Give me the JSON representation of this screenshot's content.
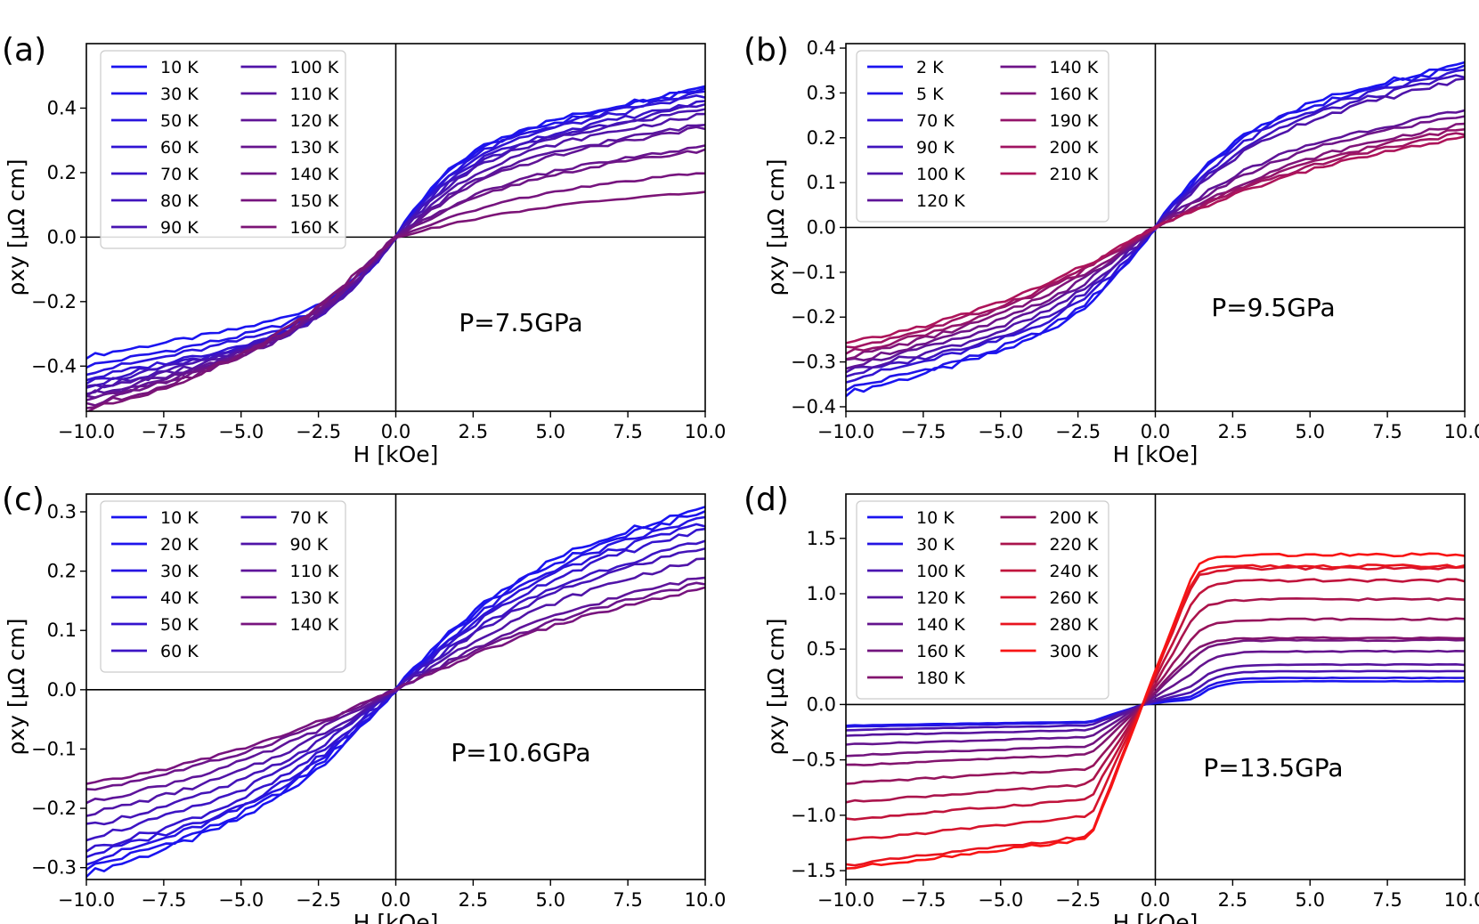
{
  "figure": {
    "background": "#ffffff",
    "axis_color": "#000000"
  },
  "chart_data": [
    {
      "type": "line",
      "panel": "(a)",
      "annotation": "P=7.5GPa",
      "xlabel": "H [kOe]",
      "ylabel": "ρxy [μΩ cm]",
      "xlim": [
        -10,
        10
      ],
      "ylim": [
        -0.54,
        0.6
      ],
      "xticks": [
        "−10.0",
        "−7.5",
        "−5.0",
        "−2.5",
        "0.0",
        "2.5",
        "5.0",
        "7.5",
        "10.0"
      ],
      "xtick_values": [
        -10,
        -7.5,
        -5,
        -2.5,
        0,
        2.5,
        5,
        7.5,
        10
      ],
      "yticks": [
        "−0.4",
        "−0.2",
        "0.0",
        "0.2",
        "0.4"
      ],
      "ytick_values": [
        -0.4,
        -0.2,
        0,
        0.2,
        0.4
      ],
      "legend": "upper-left",
      "legend_columns": 2,
      "zero_lines": true,
      "series": [
        {
          "name": "10 K",
          "color": "#1a14f0",
          "high": 0.47,
          "low": -0.37,
          "knee": 2.2
        },
        {
          "name": "30 K",
          "color": "#1f14ea",
          "high": 0.46,
          "low": -0.4,
          "knee": 2.2
        },
        {
          "name": "50 K",
          "color": "#2914de",
          "high": 0.45,
          "low": -0.42,
          "knee": 2.3
        },
        {
          "name": "60 K",
          "color": "#3014d4",
          "high": 0.44,
          "low": -0.44,
          "knee": 2.3
        },
        {
          "name": "70 K",
          "color": "#3814c8",
          "high": 0.42,
          "low": -0.45,
          "knee": 2.4
        },
        {
          "name": "80 K",
          "color": "#4014bd",
          "high": 0.41,
          "low": -0.46,
          "knee": 2.5
        },
        {
          "name": "90 K",
          "color": "#4814b2",
          "high": 0.4,
          "low": -0.47,
          "knee": 2.6
        },
        {
          "name": "100 K",
          "color": "#5014a8",
          "high": 0.38,
          "low": -0.48,
          "knee": 2.8
        },
        {
          "name": "110 K",
          "color": "#58149e",
          "high": 0.35,
          "low": -0.49,
          "knee": 3.0
        },
        {
          "name": "120 K",
          "color": "#601496",
          "high": 0.34,
          "low": -0.5,
          "knee": 3.2
        },
        {
          "name": "130 K",
          "color": "#67148e",
          "high": 0.28,
          "low": -0.51,
          "knee": 3.5
        },
        {
          "name": "140 K",
          "color": "#6e1486",
          "high": 0.27,
          "low": -0.52,
          "knee": 3.8
        },
        {
          "name": "150 K",
          "color": "#76147e",
          "high": 0.2,
          "low": -0.53,
          "knee": 4.2
        },
        {
          "name": "160 K",
          "color": "#7c1476",
          "high": 0.14,
          "low": -0.54,
          "knee": 4.6
        }
      ]
    },
    {
      "type": "line",
      "panel": "(b)",
      "annotation": "P=9.5GPa",
      "xlabel": "H [kOe]",
      "ylabel": "ρxy [μΩ cm]",
      "xlim": [
        -10,
        10
      ],
      "ylim": [
        -0.41,
        0.41
      ],
      "xticks": [
        "−10.0",
        "−7.5",
        "−5.0",
        "−2.5",
        "0.0",
        "2.5",
        "5.0",
        "7.5",
        "10.0"
      ],
      "xtick_values": [
        -10,
        -7.5,
        -5,
        -2.5,
        0,
        2.5,
        5,
        7.5,
        10
      ],
      "yticks": [
        "−0.4",
        "−0.3",
        "−0.2",
        "−0.1",
        "0.0",
        "0.1",
        "0.2",
        "0.3",
        "0.4"
      ],
      "ytick_values": [
        -0.4,
        -0.3,
        -0.2,
        -0.1,
        0,
        0.1,
        0.2,
        0.3,
        0.4
      ],
      "legend": "upper-left",
      "legend_columns": 2,
      "zero_lines": true,
      "series": [
        {
          "name": "2 K",
          "color": "#1a14f0",
          "high": 0.37,
          "low": -0.37,
          "knee": 2.8
        },
        {
          "name": "5 K",
          "color": "#2014e8",
          "high": 0.36,
          "low": -0.36,
          "knee": 2.8
        },
        {
          "name": "70 K",
          "color": "#3214d2",
          "high": 0.35,
          "low": -0.34,
          "knee": 3.0
        },
        {
          "name": "90 K",
          "color": "#4014be",
          "high": 0.34,
          "low": -0.33,
          "knee": 3.2
        },
        {
          "name": "100 K",
          "color": "#4e14aa",
          "high": 0.33,
          "low": -0.32,
          "knee": 3.4
        },
        {
          "name": "120 K",
          "color": "#5e1498",
          "high": 0.26,
          "low": -0.31,
          "knee": 3.8
        },
        {
          "name": "140 K",
          "color": "#6e1488",
          "high": 0.25,
          "low": -0.3,
          "knee": 4.2
        },
        {
          "name": "160 K",
          "color": "#80147a",
          "high": 0.23,
          "low": -0.29,
          "knee": 4.8
        },
        {
          "name": "190 K",
          "color": "#94146a",
          "high": 0.22,
          "low": -0.28,
          "knee": 5.2
        },
        {
          "name": "200 K",
          "color": "#a01462",
          "high": 0.21,
          "low": -0.27,
          "knee": 5.4
        },
        {
          "name": "210 K",
          "color": "#ad145a",
          "high": 0.2,
          "low": -0.26,
          "knee": 5.6
        }
      ]
    },
    {
      "type": "line",
      "panel": "(c)",
      "annotation": "P=10.6GPa",
      "xlabel": "H [kOe]",
      "ylabel": "ρxy [μΩ cm]",
      "xlim": [
        -10,
        10
      ],
      "ylim": [
        -0.32,
        0.33
      ],
      "xticks": [
        "−10.0",
        "−7.5",
        "−5.0",
        "−2.5",
        "0.0",
        "2.5",
        "5.0",
        "7.5",
        "10.0"
      ],
      "xtick_values": [
        -10,
        -7.5,
        -5,
        -2.5,
        0,
        2.5,
        5,
        7.5,
        10
      ],
      "yticks": [
        "−0.3",
        "−0.2",
        "−0.1",
        "0.0",
        "0.1",
        "0.2",
        "0.3"
      ],
      "ytick_values": [
        -0.3,
        -0.2,
        -0.1,
        0,
        0.1,
        0.2,
        0.3
      ],
      "legend": "upper-left",
      "legend_columns": 2,
      "zero_lines": true,
      "series": [
        {
          "name": "10 K",
          "color": "#1a14f0",
          "high": 0.31,
          "low": -0.31,
          "knee": 4.0
        },
        {
          "name": "20 K",
          "color": "#1e14ec",
          "high": 0.3,
          "low": -0.3,
          "knee": 4.0
        },
        {
          "name": "30 K",
          "color": "#2614e2",
          "high": 0.29,
          "low": -0.29,
          "knee": 4.2
        },
        {
          "name": "40 K",
          "color": "#2c14da",
          "high": 0.28,
          "low": -0.28,
          "knee": 4.2
        },
        {
          "name": "50 K",
          "color": "#3414ce",
          "high": 0.27,
          "low": -0.27,
          "knee": 4.4
        },
        {
          "name": "60 K",
          "color": "#3c14c4",
          "high": 0.25,
          "low": -0.25,
          "knee": 4.6
        },
        {
          "name": "70 K",
          "color": "#4414b8",
          "high": 0.24,
          "low": -0.23,
          "knee": 4.8
        },
        {
          "name": "90 K",
          "color": "#5014a8",
          "high": 0.22,
          "low": -0.21,
          "knee": 5.2
        },
        {
          "name": "110 K",
          "color": "#5e149a",
          "high": 0.19,
          "low": -0.19,
          "knee": 5.6
        },
        {
          "name": "130 K",
          "color": "#6c148a",
          "high": 0.18,
          "low": -0.17,
          "knee": 6.0
        },
        {
          "name": "140 K",
          "color": "#78147e",
          "high": 0.17,
          "low": -0.16,
          "knee": 6.2
        }
      ]
    },
    {
      "type": "line",
      "panel": "(d)",
      "annotation": "P=13.5GPa",
      "xlabel": "H [kOe]",
      "ylabel": "ρxy [μΩ cm]",
      "xlim": [
        -10,
        10
      ],
      "ylim": [
        -1.58,
        1.9
      ],
      "xticks": [
        "−10.0",
        "−7.5",
        "−5.0",
        "−2.5",
        "0.0",
        "2.5",
        "5.0",
        "7.5",
        "10.0"
      ],
      "xtick_values": [
        -10,
        -7.5,
        -5,
        -2.5,
        0,
        2.5,
        5,
        7.5,
        10
      ],
      "yticks": [
        "−1.5",
        "−1.0",
        "−0.5",
        "0.0",
        "0.5",
        "1.0",
        "1.5"
      ],
      "ytick_values": [
        -1.5,
        -1,
        -0.5,
        0,
        0.5,
        1,
        1.5
      ],
      "legend": "upper-left",
      "legend_columns": 2,
      "zero_lines": true,
      "series": [
        {
          "name": "10 K",
          "color": "#1a14f0",
          "high": 0.21,
          "low": -0.19,
          "sat_h": 0.05
        },
        {
          "name": "30 K",
          "color": "#2414e2",
          "high": 0.24,
          "low": -0.2,
          "sat_h": 0.08
        },
        {
          "name": "100 K",
          "color": "#4a14b0",
          "high": 0.3,
          "low": -0.23,
          "sat_h": 0.12
        },
        {
          "name": "120 K",
          "color": "#56149e",
          "high": 0.36,
          "low": -0.28,
          "sat_h": 0.18
        },
        {
          "name": "140 K",
          "color": "#64148e",
          "high": 0.48,
          "low": -0.36,
          "sat_h": 0.3
        },
        {
          "name": "160 K",
          "color": "#72147e",
          "high": 0.58,
          "low": -0.46,
          "sat_h": 0.44
        },
        {
          "name": "180 K",
          "color": "#82146e",
          "high": 0.6,
          "low": -0.55,
          "sat_h": 0.5
        },
        {
          "name": "200 K",
          "color": "#96145c",
          "high": 0.77,
          "low": -0.71,
          "sat_h": 0.64
        },
        {
          "name": "220 K",
          "color": "#aa144c",
          "high": 0.95,
          "low": -0.88,
          "sat_h": 0.82
        },
        {
          "name": "240 K",
          "color": "#c0143c",
          "high": 1.12,
          "low": -1.04,
          "sat_h": 0.98
        },
        {
          "name": "260 K",
          "color": "#d6142c",
          "high": 1.23,
          "low": -1.23,
          "sat_h": 1.15
        },
        {
          "name": "280 K",
          "color": "#e8141e",
          "high": 1.25,
          "low": -1.45,
          "sat_h": 1.18
        },
        {
          "name": "300 K",
          "color": "#f81414",
          "high": 1.35,
          "low": -1.48,
          "sat_h": 1.25
        }
      ]
    }
  ]
}
